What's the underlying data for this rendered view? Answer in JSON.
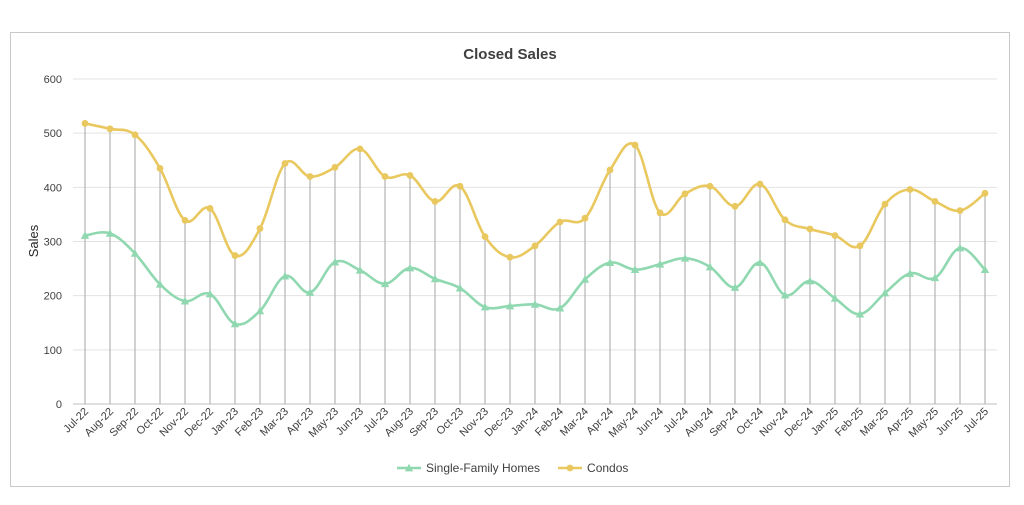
{
  "chart_data": {
    "type": "line",
    "title": "Closed Sales",
    "xlabel": "",
    "ylabel": "Sales",
    "ylim": [
      0,
      600
    ],
    "yticks": [
      0,
      100,
      200,
      300,
      400,
      500,
      600
    ],
    "grid": true,
    "drop_lines": true,
    "smooth": true,
    "legend_position": "bottom",
    "categories": [
      "Jul-22",
      "Aug-22",
      "Sep-22",
      "Oct-22",
      "Nov-22",
      "Dec-22",
      "Jan-23",
      "Feb-23",
      "Mar-23",
      "Apr-23",
      "May-23",
      "Jun-23",
      "Jul-23",
      "Aug-23",
      "Sep-23",
      "Oct-23",
      "Nov-23",
      "Dec-23",
      "Jan-24",
      "Feb-24",
      "Mar-24",
      "Apr-24",
      "May-24",
      "Jun-24",
      "Jul-24",
      "Aug-24",
      "Sep-24",
      "Oct-24",
      "Nov-24",
      "Dec-24",
      "Jan-25",
      "Feb-25",
      "Mar-25",
      "Apr-25",
      "May-25",
      "Jun-25",
      "Jul-25"
    ],
    "series": [
      {
        "name": "Single-Family Homes",
        "color": "#8fd8b0",
        "marker": "triangle",
        "values": [
          311,
          315,
          278,
          221,
          190,
          203,
          148,
          172,
          236,
          206,
          262,
          247,
          222,
          251,
          231,
          214,
          179,
          181,
          184,
          177,
          230,
          261,
          248,
          258,
          269,
          253,
          215,
          261,
          201,
          227,
          195,
          166,
          205,
          241,
          233,
          288,
          248
        ]
      },
      {
        "name": "Condos",
        "color": "#e9c85f",
        "marker": "circle",
        "values": [
          518,
          508,
          497,
          435,
          339,
          361,
          274,
          324,
          444,
          420,
          437,
          471,
          420,
          422,
          374,
          402,
          309,
          271,
          292,
          336,
          343,
          432,
          478,
          353,
          388,
          402,
          365,
          406,
          340,
          323,
          311,
          292,
          369,
          396,
          374,
          357,
          389
        ]
      }
    ]
  }
}
